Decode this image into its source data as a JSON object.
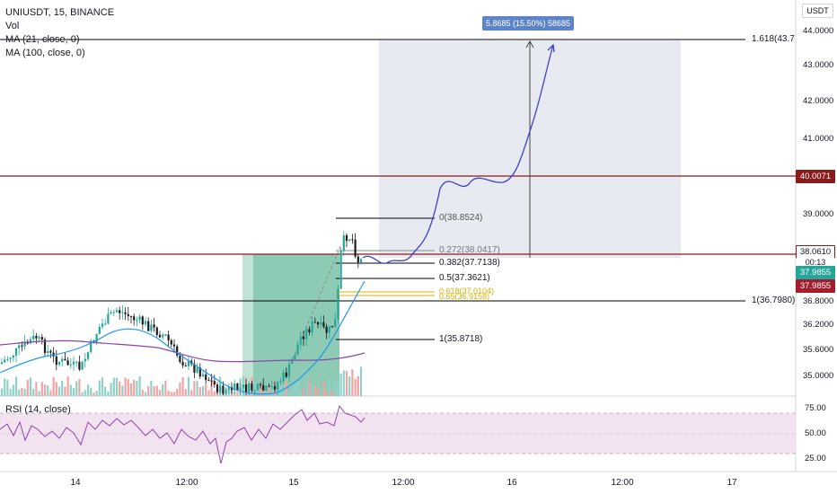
{
  "header": {
    "symbol_line": "UNIUSDT, 15, BINANCE",
    "vol_label": "Vol",
    "ma21_label": "MA (21, close, 0)",
    "ma100_label": "MA (100, close, 0)",
    "currency": "USDT"
  },
  "price_axis": {
    "ticks": [
      "44.0000",
      "43.0000",
      "42.0000",
      "41.0000",
      "40.0071",
      "39.0000",
      "38.0610",
      "00:13",
      "37.9855",
      "37.9855",
      "36.8000",
      "36.2000",
      "35.6000",
      "35.0000"
    ]
  },
  "tags": {
    "resistance": "40.0071",
    "current_price": "38.0610",
    "countdown": "00:13",
    "last_price_green": "37.9855",
    "last_price_red": "37.9855",
    "resistance_color": "#8b1a1a",
    "green_color": "#26a69a",
    "red_color": "#ef5350"
  },
  "measure": {
    "label": "5.8685 (15.50%) 58685"
  },
  "fib": {
    "level_0": "0(38.8524)",
    "level_0272": "0.272(38.0417)",
    "level_0382": "0.382(37.7138)",
    "level_05": "0.5(37.3621)",
    "level_0618": "0.618(37.0104)",
    "level_065": "0.65(36.9158)",
    "level_1": "1(35.8718)",
    "ext_1618": "1.618(43.7",
    "ext_1": "1(36.7980)"
  },
  "rsi": {
    "label": "RSI (14, close)",
    "ticks": [
      "75.00",
      "50.00",
      "25.00"
    ]
  },
  "time_axis": {
    "labels": [
      "14",
      "12:00",
      "15",
      "12:00",
      "16",
      "12:00",
      "17"
    ]
  }
}
